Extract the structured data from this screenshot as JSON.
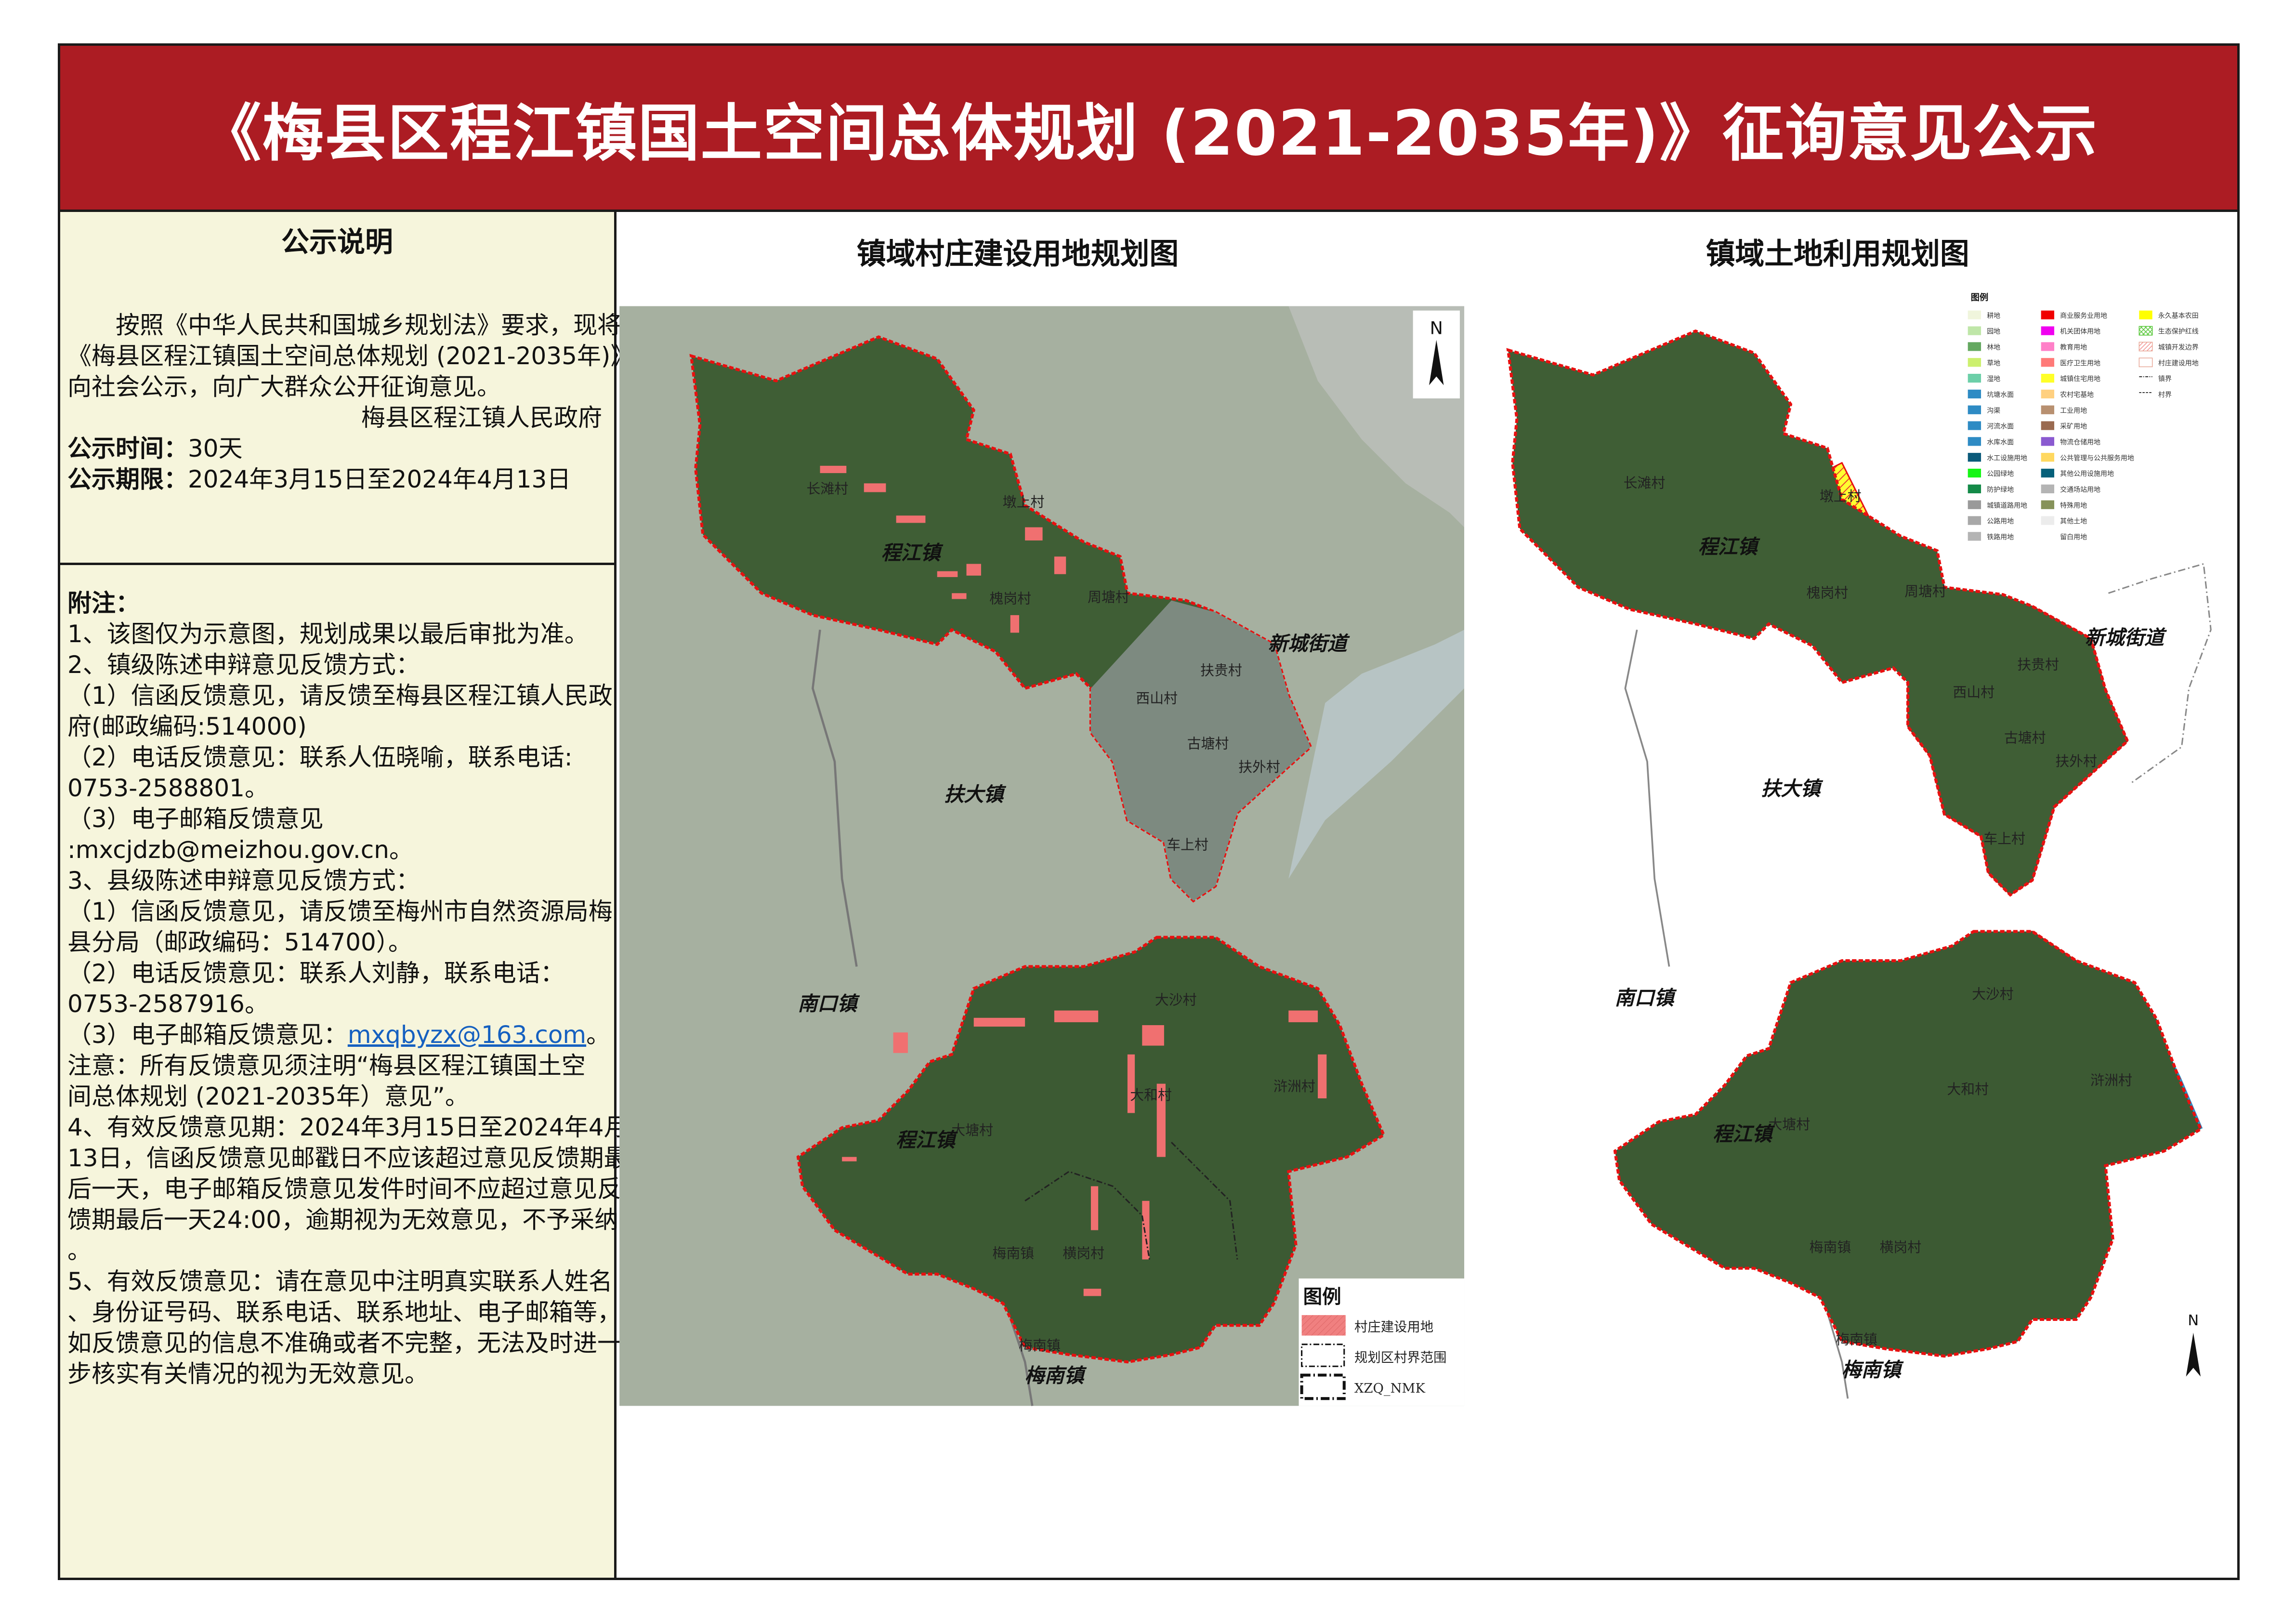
{
  "header": {
    "title": "《梅县区程江镇国土空间总体规划 (2021-2035年)》征询意见公示"
  },
  "left_panel": {
    "heading": "公示说明",
    "intro": [
      "按照《中华人民共和国城乡规划法》要求，现将",
      "《梅县区程江镇国土空间总体规划 (2021-2035年)》",
      "向社会公示，向广大群众公开征询意见。"
    ],
    "signature": "梅县区程江镇人民政府",
    "time_label": "公示时间：",
    "time_value": "30天",
    "period_label": "公示期限：",
    "period_value": "2024年3月15日至2024年4月13日",
    "notes_heading": "附注：",
    "notes": [
      "1、该图仅为示意图，规划成果以最后审批为准。",
      "2、镇级陈述申辩意见反馈方式：",
      "（1）信函反馈意见，请反馈至梅县区程江镇人民政",
      "府(邮政编码:514000)",
      "（2）电话反馈意见：联系人伍晓喻，联系电话:",
      "0753-2588801。",
      "（3）电子邮箱反馈意见",
      ":mxcjdzb@meizhou.gov.cn。",
      "3、县级陈述申辩意见反馈方式：",
      "（1）信函反馈意见，请反馈至梅州市自然资源局梅",
      "县分局（邮政编码：514700）。",
      "（2）电话反馈意见：联系人刘静，联系电话：",
      "0753-2587916。"
    ],
    "email_prefix": "（3）电子邮箱反馈意见：",
    "email_link": "mxqbyzx@163.com",
    "email_suffix": "。",
    "notes_after": [
      " 注意：所有反馈意见须注明“梅县区程江镇国土空",
      "间总体规划 (2021-2035年）意见”。",
      "4、有效反馈意见期：2024年3月15日至2024年4月",
      "13日，信函反馈意见邮戳日不应该超过意见反馈期最",
      "后一天，电子邮箱反馈意见发件时间不应超过意见反",
      "馈期最后一天24:00，逾期视为无效意见，不予采纳",
      "。",
      "5、有效反馈意见：请在意见中注明真实联系人姓名",
      "、身份证号码、联系电话、联系地址、电子邮箱等，",
      "如反馈意见的信息不准确或者不完整，无法及时进一",
      "步核实有关情况的视为无效意见。"
    ]
  },
  "maps": {
    "village_map_title": "镇域村庄建设用地规划图",
    "landuse_map_title": "镇域土地利用规划图",
    "north_label": "N",
    "place_labels": [
      "长滩村",
      "墩上村",
      "程江镇",
      "槐岗村",
      "周塘村",
      "新城街道",
      "扶贵村",
      "西山村",
      "古塘村",
      "扶外村",
      "扶大镇",
      "车上村",
      "南口镇",
      "大沙村",
      "浒洲村",
      "大和村",
      "大塘村",
      "程江镇",
      "梅南镇",
      "横岗村",
      "梅南镇",
      "梅南镇"
    ],
    "village_legend": {
      "title": "图例",
      "items": [
        {
          "label": "村庄建设用地",
          "color": "#f08080"
        },
        {
          "label": "规划区村界范围"
        },
        {
          "label": "XZQ_NMK"
        }
      ]
    },
    "landuse_legend": {
      "title": "图例",
      "columns": [
        [
          {
            "label": "耕地",
            "color": "#f0f5dc"
          },
          {
            "label": "园地",
            "color": "#bfe6a8"
          },
          {
            "label": "林地",
            "color": "#64a860"
          },
          {
            "label": "草地",
            "color": "#ccf06e"
          },
          {
            "label": "湿地",
            "color": "#6ccfa8"
          },
          {
            "label": "坑塘水面",
            "color": "#2e8bc4"
          },
          {
            "label": "沟渠",
            "color": "#2e8bc4"
          },
          {
            "label": "河流水面",
            "color": "#2e8bc4"
          },
          {
            "label": "水库水面",
            "color": "#2e8bc4"
          },
          {
            "label": "水工设施用地",
            "color": "#0a5a7a"
          },
          {
            "label": "公园绿地",
            "color": "#16f516"
          },
          {
            "label": "防护绿地",
            "color": "#148a48"
          },
          {
            "label": "城镇道路用地",
            "color": "#9a9a9a"
          },
          {
            "label": "公路用地",
            "color": "#a8a8a8"
          },
          {
            "label": "铁路用地",
            "color": "#b4b4b4"
          }
        ],
        [
          {
            "label": "商业服务业用地",
            "color": "#f00000"
          },
          {
            "label": "机关团体用地",
            "color": "#f000f0"
          },
          {
            "label": "教育用地",
            "color": "#ff80c8"
          },
          {
            "label": "医疗卫生用地",
            "color": "#ff7a78"
          },
          {
            "label": "城镇住宅用地",
            "color": "#ffff28"
          },
          {
            "label": "农村宅基地",
            "color": "#ffd080"
          },
          {
            "label": "工业用地",
            "color": "#b89070"
          },
          {
            "label": "采矿用地",
            "color": "#9a6a50"
          },
          {
            "label": "物流仓储用地",
            "color": "#8a5ad0"
          },
          {
            "label": "公共管理与公共服务用地",
            "color": "#ffd860"
          },
          {
            "label": "其他公用设施用地",
            "color": "#06607a"
          },
          {
            "label": "交通场站用地",
            "color": "#b4b4b4"
          },
          {
            "label": "特殊用地",
            "color": "#86925a"
          },
          {
            "label": "其他土地",
            "color": "#ececec"
          },
          {
            "label": "留白用地",
            "color": "#ffffff"
          }
        ],
        [
          {
            "label": "永久基本农田",
            "color": "#ffff00"
          },
          {
            "label": "生态保护红线",
            "color": "#5ac83c"
          },
          {
            "label": "城镇开发边界",
            "color": "#f07878"
          },
          {
            "label": "村庄建设用地",
            "color": "#ffffff"
          },
          {
            "label": "镇界"
          },
          {
            "label": "村界"
          }
        ]
      ]
    }
  }
}
